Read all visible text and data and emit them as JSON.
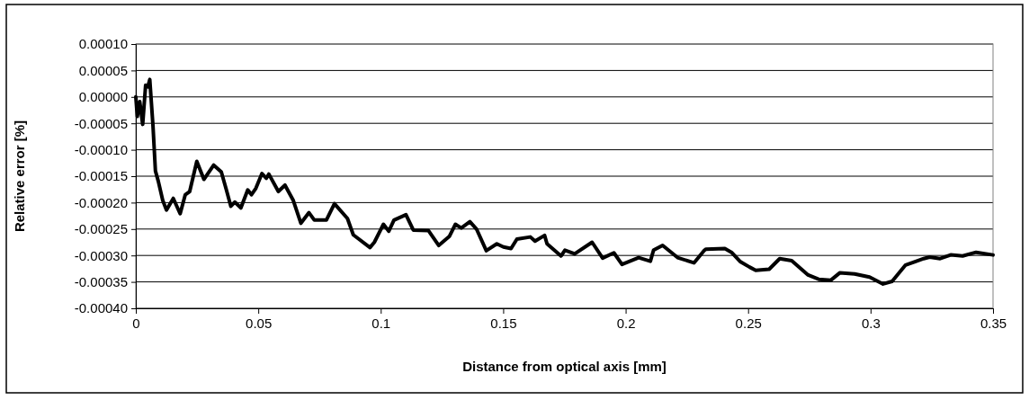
{
  "chart_data": {
    "type": "line",
    "xlabel": "Distance from optical axis [mm]",
    "ylabel": "Relative error [%]",
    "xlim": [
      0,
      0.35
    ],
    "xticks": [
      0,
      0.05,
      0.1,
      0.15,
      0.2,
      0.25,
      0.3,
      0.35
    ],
    "ylim": [
      -0.0004,
      0.0001
    ],
    "yticks": [
      {
        "value": 0.0001,
        "label": "0.00010"
      },
      {
        "value": 5e-05,
        "label": "0.00005"
      },
      {
        "value": 0,
        "label": "0.00000"
      },
      {
        "value": -5e-05,
        "label": "-0.00005"
      },
      {
        "value": -0.0001,
        "label": "-0.00010"
      },
      {
        "value": -0.00015,
        "label": "-0.00015"
      },
      {
        "value": -0.0002,
        "label": "-0.00020"
      },
      {
        "value": -0.00025,
        "label": "-0.00025"
      },
      {
        "value": -0.0003,
        "label": "-0.00030"
      },
      {
        "value": -0.00035,
        "label": "-0.00035"
      },
      {
        "value": -0.0004,
        "label": "-0.00040"
      }
    ],
    "grid": "y",
    "marker": "none",
    "line_style": "solid",
    "series": [
      {
        "color": "#000000",
        "x": [
          0,
          0.0006,
          0.0016,
          0.0028,
          0.004,
          0.0049,
          0.0057,
          0.007,
          0.008,
          0.0092,
          0.011,
          0.0125,
          0.0153,
          0.0181,
          0.0202,
          0.022,
          0.0249,
          0.0278,
          0.0318,
          0.0349,
          0.0368,
          0.0388,
          0.0404,
          0.0429,
          0.0457,
          0.0472,
          0.049,
          0.0515,
          0.0533,
          0.0543,
          0.0582,
          0.0609,
          0.0643,
          0.0674,
          0.0707,
          0.0729,
          0.0778,
          0.0811,
          0.0864,
          0.0888,
          0.0956,
          0.0974,
          0.1011,
          0.1033,
          0.1054,
          0.1103,
          0.1133,
          0.1195,
          0.1237,
          0.128,
          0.1305,
          0.1329,
          0.1364,
          0.1391,
          0.1431,
          0.1474,
          0.1501,
          0.1532,
          0.1556,
          0.1611,
          0.163,
          0.1669,
          0.1679,
          0.1736,
          0.1752,
          0.1792,
          0.1863,
          0.1906,
          0.1952,
          0.1985,
          0.2053,
          0.2101,
          0.2114,
          0.2151,
          0.2212,
          0.2279,
          0.2322,
          0.2328,
          0.2405,
          0.2432,
          0.2469,
          0.2506,
          0.2531,
          0.2586,
          0.2629,
          0.2678,
          0.2745,
          0.2788,
          0.2837,
          0.2874,
          0.2935,
          0.2996,
          0.3051,
          0.3088,
          0.3143,
          0.3217,
          0.3241,
          0.3284,
          0.3327,
          0.3376,
          0.3431,
          0.35
        ],
        "values": [
          0,
          -3.7e-05,
          -9e-06,
          -5.2e-05,
          2.2e-05,
          1.9e-05,
          3.3e-05,
          -5.4e-05,
          -0.00014,
          -0.00016,
          -0.000196,
          -0.000214,
          -0.000192,
          -0.000221,
          -0.000185,
          -0.000179,
          -0.000122,
          -0.000156,
          -0.000129,
          -0.000142,
          -0.000173,
          -0.000207,
          -0.000199,
          -0.00021,
          -0.000176,
          -0.000185,
          -0.000173,
          -0.000145,
          -0.000154,
          -0.000146,
          -0.000179,
          -0.000167,
          -0.000196,
          -0.000239,
          -0.000219,
          -0.000233,
          -0.000233,
          -0.000202,
          -0.00023,
          -0.000261,
          -0.000285,
          -0.000275,
          -0.000241,
          -0.000254,
          -0.000233,
          -0.000223,
          -0.000252,
          -0.000253,
          -0.000281,
          -0.000264,
          -0.000241,
          -0.000248,
          -0.000236,
          -0.00025,
          -0.000291,
          -0.000278,
          -0.000284,
          -0.000287,
          -0.000269,
          -0.000265,
          -0.000273,
          -0.000262,
          -0.000278,
          -0.000301,
          -0.00029,
          -0.000297,
          -0.000275,
          -0.000305,
          -0.000295,
          -0.000317,
          -0.000304,
          -0.000311,
          -0.00029,
          -0.000281,
          -0.000304,
          -0.000314,
          -0.00029,
          -0.000288,
          -0.000287,
          -0.000294,
          -0.000312,
          -0.000322,
          -0.000328,
          -0.000326,
          -0.000306,
          -0.00031,
          -0.000337,
          -0.000345,
          -0.000347,
          -0.000333,
          -0.000335,
          -0.000341,
          -0.000354,
          -0.000349,
          -0.000318,
          -0.000306,
          -0.000303,
          -0.000306,
          -0.000299,
          -0.000301,
          -0.000294,
          -0.000299
        ]
      }
    ]
  }
}
